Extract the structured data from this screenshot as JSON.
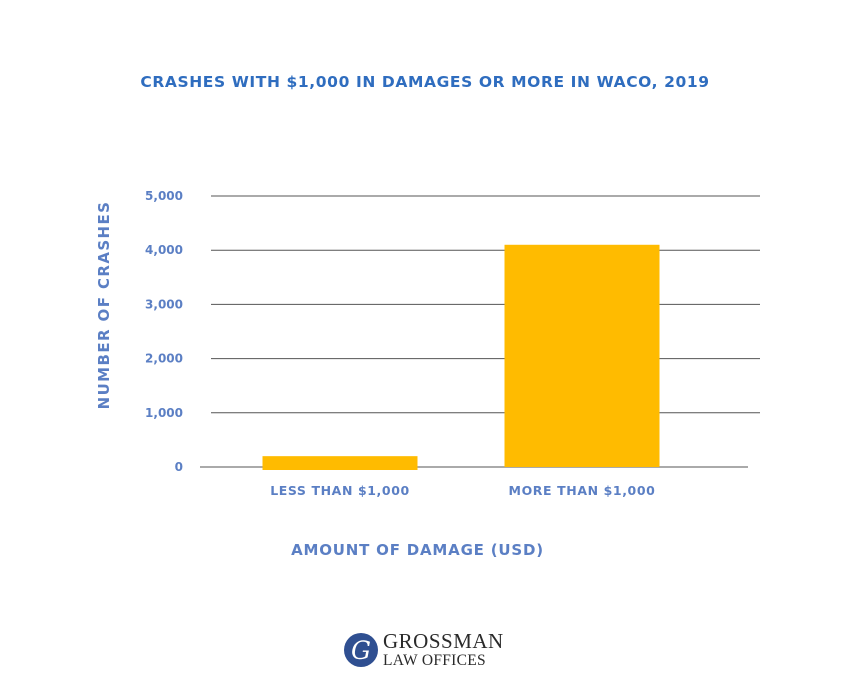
{
  "chart_data": {
    "type": "bar",
    "title": "CRASHES WITH $1,000 IN  DAMAGES OR MORE IN WACO, 2019",
    "xlabel": "AMOUNT OF DAMAGE (USD)",
    "ylabel": "NUMBER OF CRASHES",
    "categories": [
      "LESS THAN $1,000",
      "MORE THAN $1,000"
    ],
    "values": [
      200,
      4100
    ],
    "ylim": [
      0,
      5000
    ],
    "yticks": [
      0,
      1000,
      2000,
      3000,
      4000,
      5000
    ],
    "ytick_labels": [
      "0",
      "1,000",
      "2,000",
      "3,000",
      "4,000",
      "5,000"
    ],
    "grid": true,
    "bar_color": "#FFBB00"
  },
  "logo": {
    "mark": "G",
    "line1": "GROSSMAN",
    "line2": "LAW OFFICES",
    "color": "#2f4f91"
  }
}
